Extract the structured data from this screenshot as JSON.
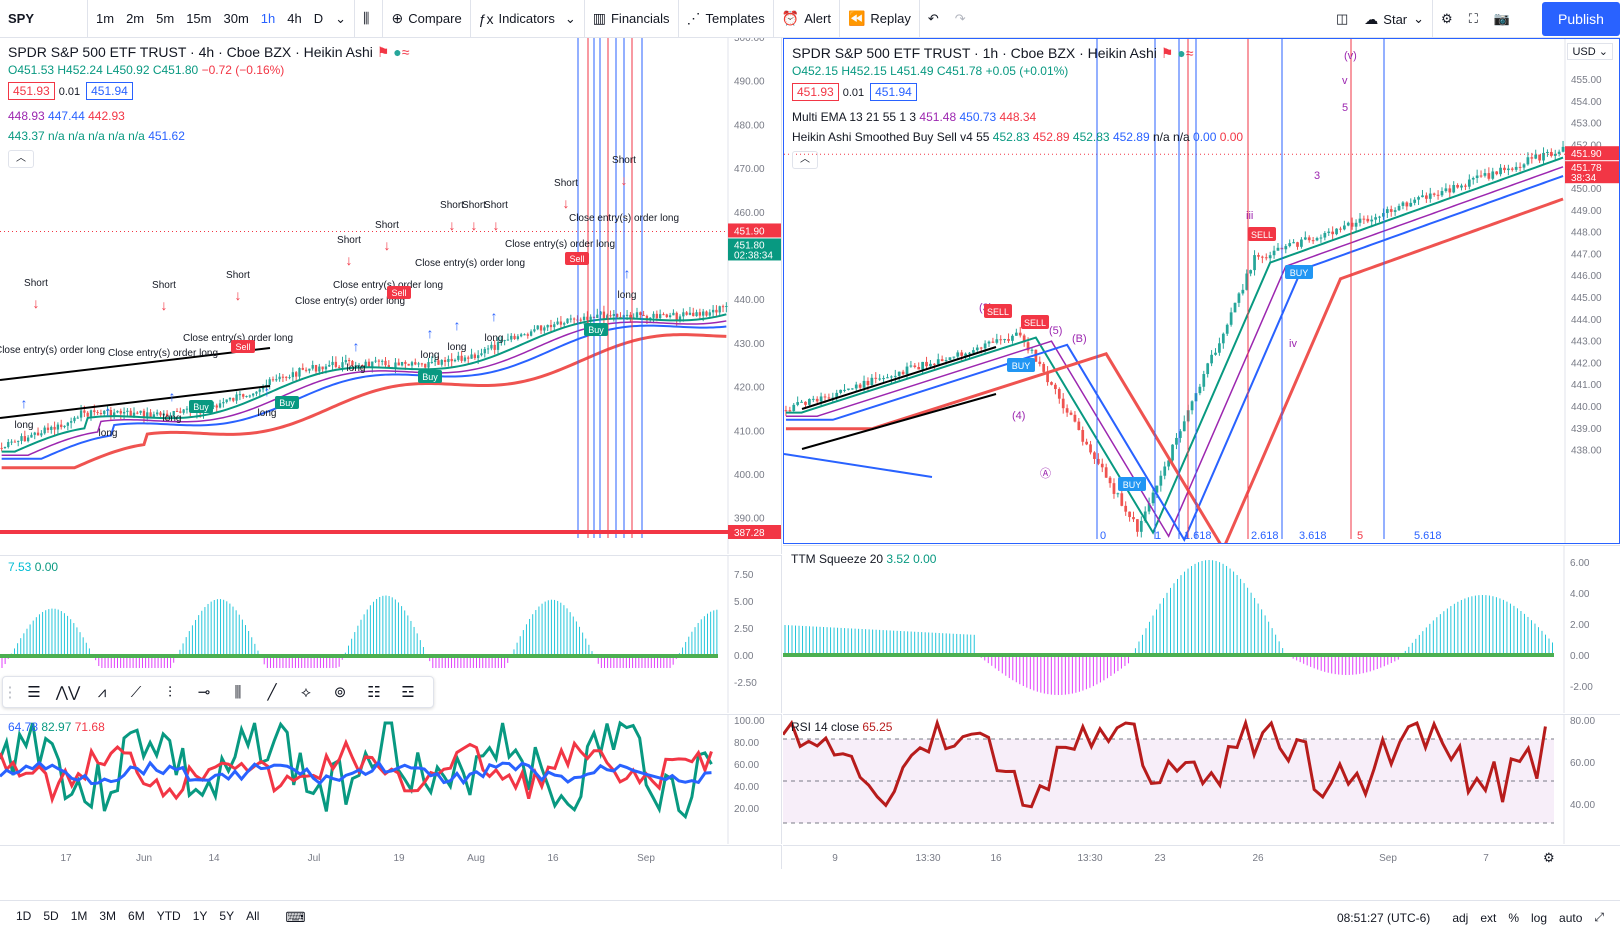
{
  "toolbar": {
    "symbol": "SPY",
    "timeframes": [
      "1m",
      "2m",
      "5m",
      "15m",
      "30m",
      "1h",
      "4h",
      "D"
    ],
    "active_tf": "1h",
    "compare": "Compare",
    "indicators": "Indicators",
    "financials": "Financials",
    "templates": "Templates",
    "alert": "Alert",
    "replay": "Replay",
    "star": "Star",
    "publish": "Publish"
  },
  "left": {
    "title": "SPDR S&P 500 ETF TRUST · 4h · Cboe BZX · Heikin Ashi",
    "ohlc": {
      "o": "O451.53",
      "h": "H452.24",
      "l": "L450.92",
      "c": "C451.80",
      "chg": "−0.72 (−0.16%)"
    },
    "bid": "451.93",
    "spread": "0.01",
    "ask": "451.94",
    "ema": [
      "448.93",
      "447.44",
      "442.93"
    ],
    "ha": [
      "443.37",
      "n/a",
      "n/a",
      "n/a",
      "n/a",
      "n/a",
      "451.62"
    ],
    "price_axis": [
      "500.00",
      "490.00",
      "480.00",
      "470.00",
      "460.00",
      "450.00",
      "440.00",
      "430.00",
      "420.00",
      "410.00",
      "400.00",
      "390.00"
    ],
    "price_tag": "451.90",
    "price_tag2": "451.80",
    "countdown": "02:38:34",
    "red_tag": "387.28",
    "osc_legend": [
      "7.53",
      "0.00"
    ],
    "osc_axis": [
      "7.50",
      "5.00",
      "2.50",
      "0.00",
      "-2.50"
    ],
    "rsi_legend": [
      "64.78",
      "82.97",
      "71.68"
    ],
    "rsi_axis": [
      "100.00",
      "80.00",
      "60.00",
      "40.00",
      "20.00"
    ],
    "time_axis": [
      "17",
      "Jun",
      "14",
      "Jul",
      "19",
      "Aug",
      "16",
      "Sep"
    ],
    "annotations": {
      "short": "Short",
      "long": "long",
      "close": "Close entry(s) order long",
      "buy": "Buy",
      "sell": "Sell"
    }
  },
  "right": {
    "title": "SPDR S&P 500 ETF TRUST · 1h · Cboe BZX · Heikin Ashi",
    "ohlc": {
      "o": "O452.15",
      "h": "H452.15",
      "l": "L451.49",
      "c": "C451.78",
      "chg": "+0.05 (+0.01%)"
    },
    "bid": "451.93",
    "spread": "0.01",
    "ask": "451.94",
    "ema_label": "Multi EMA 13 21 55 1 3",
    "ema": [
      "451.48",
      "450.73",
      "448.34"
    ],
    "ha_label": "Heikin Ashi Smoothed Buy Sell v4 55",
    "ha": [
      "452.83",
      "452.89",
      "452.83",
      "452.89",
      "n/a",
      "n/a",
      "0.00",
      "0.00"
    ],
    "currency": "USD",
    "price_axis": [
      "455.00",
      "454.00",
      "453.00",
      "452.00",
      "451.00",
      "450.00",
      "449.00",
      "448.00",
      "447.00",
      "446.00",
      "445.00",
      "444.00",
      "443.00",
      "442.00",
      "441.00",
      "440.00",
      "439.00",
      "438.00"
    ],
    "price_tag": "451.90",
    "price_tag2": "451.78",
    "countdown": "38:34",
    "ttm_label": "TTM Squeeze 20",
    "ttm": [
      "3.52",
      "0.00"
    ],
    "ttm_axis": [
      "6.00",
      "4.00",
      "2.00",
      "0.00",
      "-2.00"
    ],
    "rsi_label": "RSI 14 close",
    "rsi": "65.25",
    "rsi_axis": [
      "80.00",
      "60.00",
      "40.00"
    ],
    "time_axis": [
      "9",
      "13:30",
      "16",
      "13:30",
      "23",
      "26",
      "Sep",
      "7"
    ],
    "fib": [
      "0",
      "1",
      "1.618",
      "2.618",
      "3.618",
      "5",
      "5.618"
    ],
    "waves": [
      "(v)",
      "v",
      "5",
      "3",
      "(3)",
      "(4)",
      "(5)",
      "(B)",
      "iii",
      "iv",
      "Ⓐ"
    ],
    "sell": "SELL",
    "buy": "BUY"
  },
  "bottom": {
    "ranges": [
      "1D",
      "5D",
      "1M",
      "3M",
      "6M",
      "YTD",
      "1Y",
      "5Y",
      "All"
    ],
    "clock": "08:51:27 (UTC-6)",
    "opts": [
      "adj",
      "ext",
      "%",
      "log",
      "auto"
    ]
  },
  "colors": {
    "up": "#26a69a",
    "down": "#ef5350",
    "blue": "#2962ff",
    "red": "#f23645",
    "green": "#089981",
    "purple": "#9c27b0"
  }
}
